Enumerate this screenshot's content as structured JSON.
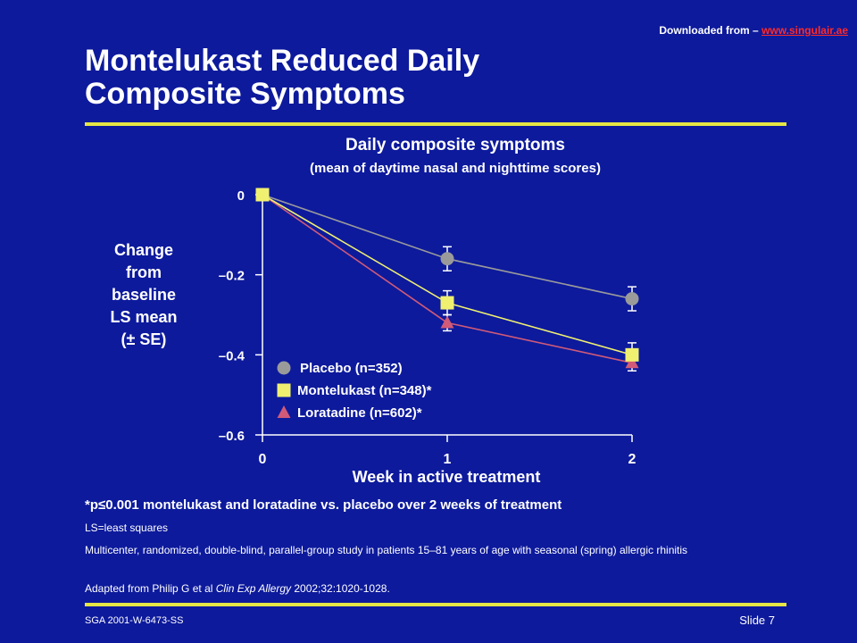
{
  "header": {
    "download_prefix": "Downloaded from – ",
    "download_link": "www.singulair.ae"
  },
  "slide": {
    "title_line1": "Montelukast Reduced Daily",
    "title_line2": "Composite Symptoms",
    "footnote_prefix": "*p",
    "footnote_symbol": "≤",
    "footnote_text": "0.001 montelukast and loratadine vs. placebo over 2 weeks of treatment",
    "note_ls": "LS=least squares",
    "note_study": "Multicenter, randomized, double-blind, parallel-group study in patients 15–81 years of age with seasonal (spring) allergic rhinitis",
    "note_adapted_prefix": "Adapted from Philip G et al ",
    "note_adapted_journal": "Clin Exp Allergy",
    "note_adapted_suffix": " 2002;32:1020-1028.",
    "code": "SGA  2001-W-6473-SS",
    "slide_number": "Slide 7"
  },
  "colors": {
    "background": "#0d1a9c",
    "rule": "#e6e645",
    "link": "#ff2a2a"
  },
  "chart_data": {
    "type": "line",
    "title": "Daily composite symptoms",
    "subtitle": "(mean of daytime nasal and nighttime scores)",
    "ylabel_lines": [
      "Change",
      "from",
      "baseline",
      "LS mean",
      "(± SE)"
    ],
    "xlabel": "Week in active treatment",
    "x": [
      0,
      1,
      2
    ],
    "x_tick_labels": [
      "0",
      "1",
      "2"
    ],
    "xlim": [
      0,
      2
    ],
    "ylim": [
      -0.6,
      0
    ],
    "y_ticks": [
      0,
      -0.2,
      -0.4,
      -0.6
    ],
    "y_tick_labels": [
      "0",
      "–0.2",
      "–0.4",
      "–0.6"
    ],
    "grid": false,
    "legend_position": "lower-left inside plot",
    "series": [
      {
        "name": "Placebo (n=352)",
        "marker": "circle",
        "color": "#9a9a9a",
        "values": [
          0,
          -0.16,
          -0.26
        ],
        "error": [
          0,
          0.03,
          0.03
        ]
      },
      {
        "name": "Montelukast (n=348)*",
        "marker": "square",
        "color": "#f0f070",
        "values": [
          0,
          -0.27,
          -0.4
        ],
        "error": [
          0,
          0.03,
          0.03
        ]
      },
      {
        "name": "Loratadine (n=602)*",
        "marker": "triangle",
        "color": "#d05a78",
        "values": [
          0,
          -0.32,
          -0.42
        ],
        "error": [
          0,
          0.02,
          0.02
        ]
      }
    ]
  }
}
